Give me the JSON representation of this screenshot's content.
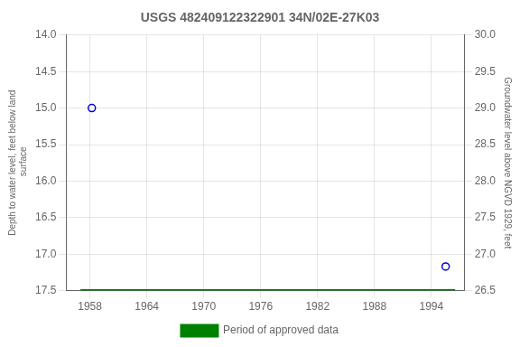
{
  "chart_data": {
    "type": "scatter",
    "title": "USGS 482409122322901 34N/02E-27K03",
    "ylabel": "Depth to water level, feet below land\n surface",
    "y2label": "Groundwater level above NGVD 1929, feet",
    "xlim": [
      1955.5,
      1997.5
    ],
    "xticks": [
      1958,
      1964,
      1970,
      1976,
      1982,
      1988,
      1994
    ],
    "ylim": [
      17.5,
      14.0
    ],
    "yticks": [
      {
        "value": 14.0,
        "label": "14.0"
      },
      14.5,
      {
        "value": 15.0,
        "label": "15.0"
      },
      15.5,
      {
        "value": 16.0,
        "label": "16.0"
      },
      16.5,
      {
        "value": 17.0,
        "label": "17.0"
      },
      17.5
    ],
    "y2lim": [
      26.5,
      30.0
    ],
    "y2ticks": [
      26.5,
      {
        "value": 27.0,
        "label": "27.0"
      },
      27.5,
      {
        "value": 28.0,
        "label": "28.0"
      },
      28.5,
      {
        "value": 29.0,
        "label": "29.0"
      },
      29.5,
      {
        "value": 30.0,
        "label": "30.0"
      }
    ],
    "grid": true,
    "legend": "bottom",
    "series": [
      {
        "type": "scatter",
        "color": "#0000cc",
        "marker": "circle",
        "line_style": "none",
        "x": [
          1958.2,
          1995.5
        ],
        "values": [
          15.0,
          17.17
        ]
      },
      {
        "name": "Period of approved data",
        "type": "line",
        "color": "#008000",
        "line_style": "solid",
        "x": [
          1957.0,
          1996.5
        ],
        "values": [
          17.5,
          17.5
        ]
      }
    ]
  }
}
